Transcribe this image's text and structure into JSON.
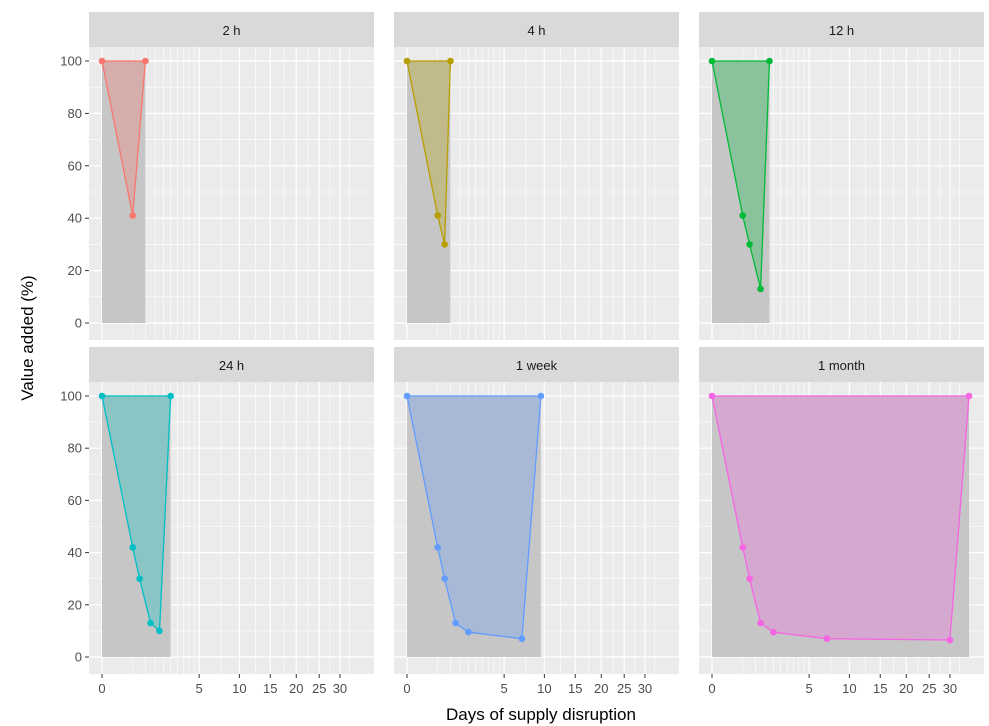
{
  "chart_data": {
    "type": "area",
    "xlabel": "Days of supply disruption",
    "ylabel": "Value added (%)",
    "x_ticks": [
      0,
      5,
      10,
      15,
      20,
      25,
      30
    ],
    "y_ticks": [
      0,
      20,
      40,
      60,
      80,
      100
    ],
    "ylim": [
      0,
      100
    ],
    "colors": {
      "panel_bg": "#ebebeb",
      "grid": "#ffffff",
      "strip_bg": "#d9d9d9",
      "shade": "#c6c6c6"
    },
    "panels": [
      {
        "label": "2 h",
        "color": "#f8766d",
        "points": [
          {
            "x": 0,
            "y": 100
          },
          {
            "x": 0.5,
            "y": 41
          },
          {
            "x": 1,
            "y": 100
          }
        ]
      },
      {
        "label": "4 h",
        "color": "#b79f00",
        "points": [
          {
            "x": 0,
            "y": 100
          },
          {
            "x": 0.5,
            "y": 41
          },
          {
            "x": 0.75,
            "y": 30
          },
          {
            "x": 1,
            "y": 100
          }
        ]
      },
      {
        "label": "12 h",
        "color": "#00ba38",
        "points": [
          {
            "x": 0,
            "y": 100
          },
          {
            "x": 0.5,
            "y": 41
          },
          {
            "x": 0.75,
            "y": 30
          },
          {
            "x": 1.25,
            "y": 13
          },
          {
            "x": 1.75,
            "y": 100
          }
        ]
      },
      {
        "label": "24 h",
        "color": "#00bfc4",
        "points": [
          {
            "x": 0,
            "y": 100
          },
          {
            "x": 0.5,
            "y": 42
          },
          {
            "x": 0.75,
            "y": 30
          },
          {
            "x": 1.25,
            "y": 13
          },
          {
            "x": 1.75,
            "y": 10
          },
          {
            "x": 2.5,
            "y": 100
          }
        ]
      },
      {
        "label": "1 week",
        "color": "#619cff",
        "points": [
          {
            "x": 0,
            "y": 100
          },
          {
            "x": 0.5,
            "y": 42
          },
          {
            "x": 0.75,
            "y": 30
          },
          {
            "x": 1.25,
            "y": 13
          },
          {
            "x": 2,
            "y": 9.5
          },
          {
            "x": 7,
            "y": 7
          },
          {
            "x": 9.5,
            "y": 100
          }
        ]
      },
      {
        "label": "1 month",
        "color": "#f564e3",
        "points": [
          {
            "x": 0,
            "y": 100
          },
          {
            "x": 0.5,
            "y": 42
          },
          {
            "x": 0.75,
            "y": 30
          },
          {
            "x": 1.25,
            "y": 13
          },
          {
            "x": 2,
            "y": 9.5
          },
          {
            "x": 7,
            "y": 7
          },
          {
            "x": 30,
            "y": 6.5
          },
          {
            "x": 35,
            "y": 100
          }
        ]
      }
    ]
  }
}
